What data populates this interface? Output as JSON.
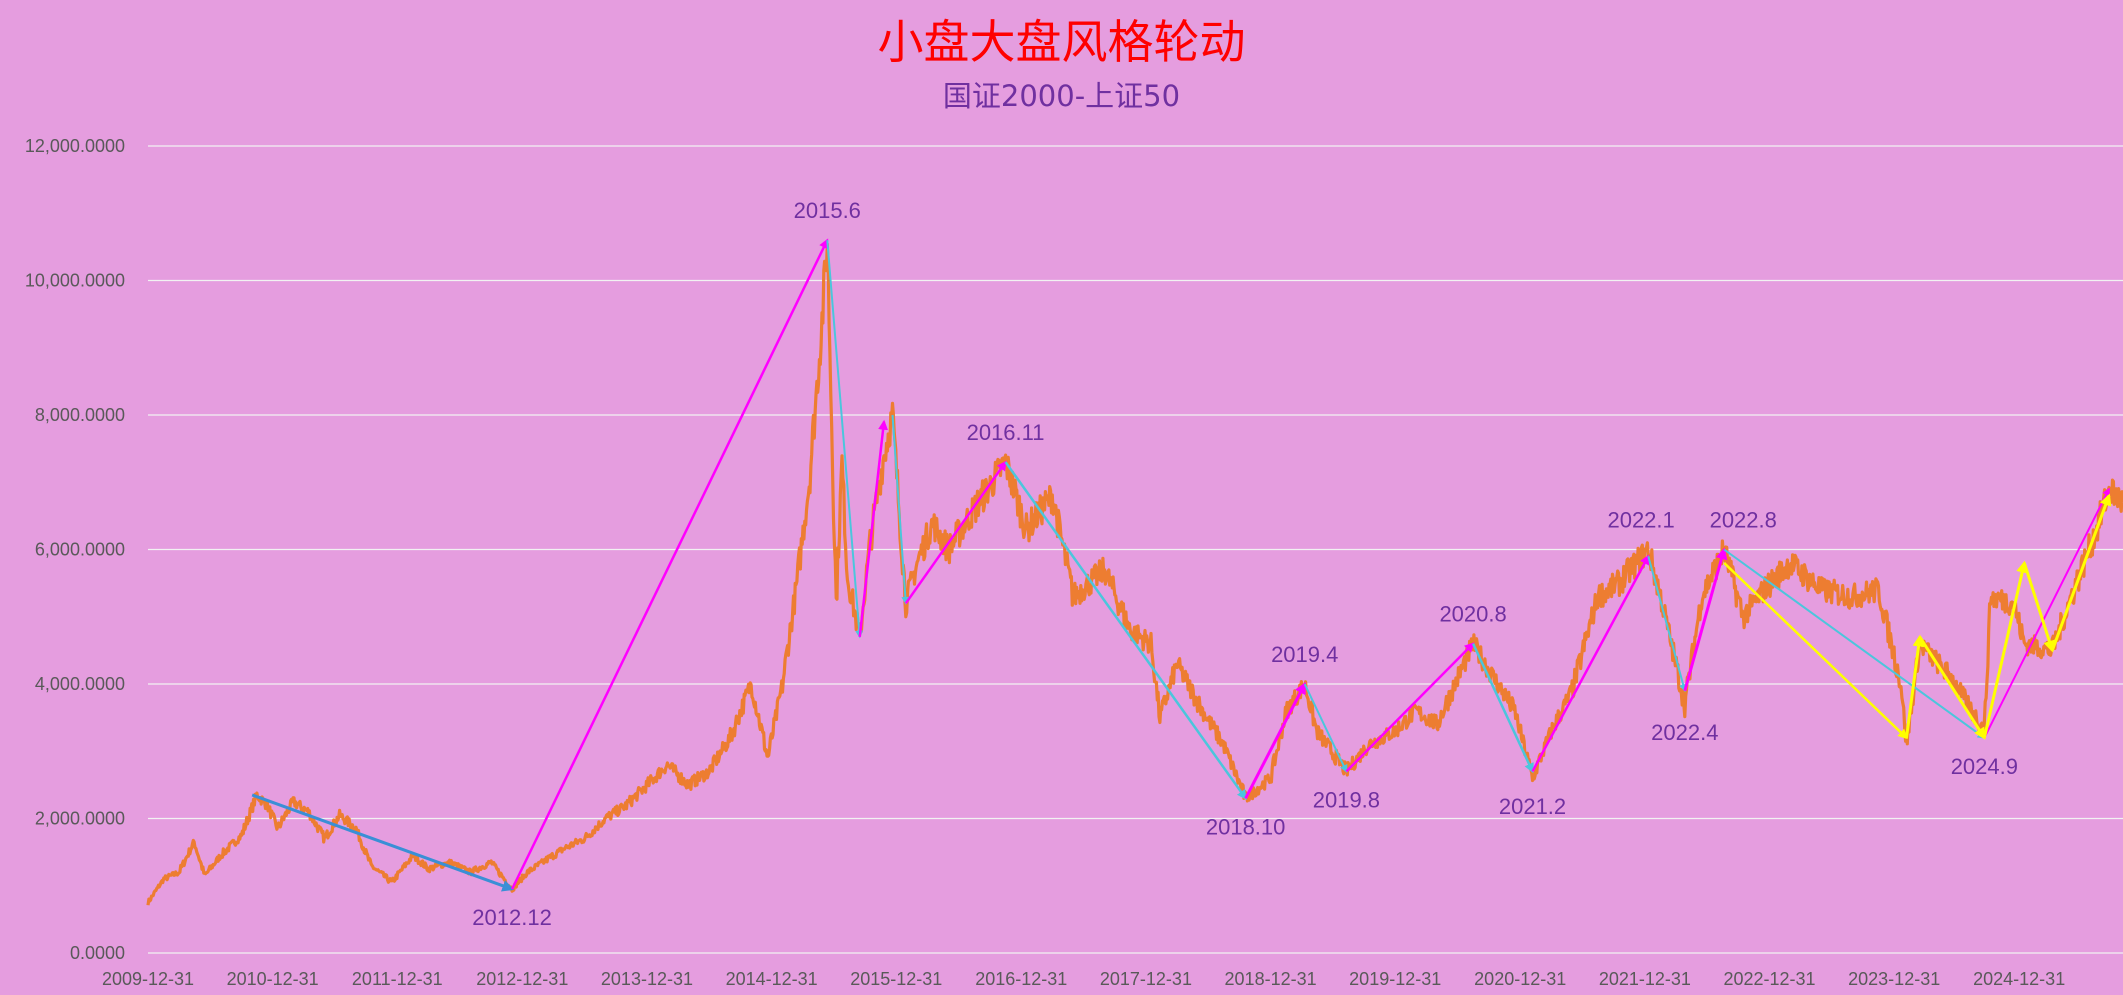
{
  "title": "小盘大盘风格轮动",
  "subtitle": "国证2000-上证50",
  "colors": {
    "background": "#e59ddf",
    "title": "#ff0000",
    "subtitle": "#7030a0",
    "series": "#ed7d31",
    "grid": "#f2f2f2",
    "annotation_text": "#7030a0",
    "arrow_up": "#ff00ff",
    "arrow_down": "#4bc6dc",
    "arrow_blue": "#3a8fd6",
    "arrow_yellow": "#ffff00"
  },
  "chart_data": {
    "type": "line",
    "title": "小盘大盘风格轮动",
    "subtitle": "国证2000-上证50",
    "xlabel": "",
    "ylabel": "",
    "ylim": [
      0,
      12000
    ],
    "grid": true,
    "legend": "none",
    "x_start": "2009-12-31",
    "x_end": "2025-10-31",
    "y_ticks": [
      "0.0000",
      "2,000.0000",
      "4,000.0000",
      "6,000.0000",
      "8,000.0000",
      "10,000.0000",
      "12,000.0000"
    ],
    "y_tick_values": [
      0,
      2000,
      4000,
      6000,
      8000,
      10000,
      12000
    ],
    "x_ticks": [
      "2009-12-31",
      "2010-12-31",
      "2011-12-31",
      "2012-12-31",
      "2013-12-31",
      "2014-12-31",
      "2015-12-31",
      "2016-12-31",
      "2017-12-31",
      "2018-12-31",
      "2019-12-31",
      "2020-12-31",
      "2021-12-31",
      "2022-12-31",
      "2023-12-31",
      "2024-12-31"
    ],
    "series": [
      {
        "color": "#ed7d31",
        "points": [
          [
            "2009-12-31",
            750
          ],
          [
            "2010-02-15",
            1100
          ],
          [
            "2010-04-01",
            1200
          ],
          [
            "2010-05-15",
            1650
          ],
          [
            "2010-06-15",
            1150
          ],
          [
            "2010-08-01",
            1450
          ],
          [
            "2010-10-01",
            1750
          ],
          [
            "2010-11-15",
            2350
          ],
          [
            "2010-12-15",
            2200
          ],
          [
            "2011-01-15",
            1850
          ],
          [
            "2011-03-01",
            2250
          ],
          [
            "2011-04-15",
            2100
          ],
          [
            "2011-06-01",
            1700
          ],
          [
            "2011-07-15",
            2050
          ],
          [
            "2011-09-01",
            1850
          ],
          [
            "2011-10-15",
            1300
          ],
          [
            "2011-12-15",
            1050
          ],
          [
            "2012-02-15",
            1450
          ],
          [
            "2012-04-01",
            1250
          ],
          [
            "2012-06-01",
            1350
          ],
          [
            "2012-08-01",
            1200
          ],
          [
            "2012-10-01",
            1350
          ],
          [
            "2012-12-01",
            950
          ],
          [
            "2013-01-15",
            1200
          ],
          [
            "2013-03-01",
            1350
          ],
          [
            "2013-05-01",
            1550
          ],
          [
            "2013-07-01",
            1700
          ],
          [
            "2013-09-01",
            2000
          ],
          [
            "2013-11-01",
            2200
          ],
          [
            "2014-01-01",
            2500
          ],
          [
            "2014-03-01",
            2800
          ],
          [
            "2014-05-01",
            2500
          ],
          [
            "2014-07-01",
            2700
          ],
          [
            "2014-09-01",
            3200
          ],
          [
            "2014-11-01",
            4000
          ],
          [
            "2014-12-20",
            2900
          ],
          [
            "2015-02-01",
            4000
          ],
          [
            "2015-03-15",
            5500
          ],
          [
            "2015-04-20",
            7000
          ],
          [
            "2015-05-25",
            9200
          ],
          [
            "2015-06-12",
            10600
          ],
          [
            "2015-07-08",
            5200
          ],
          [
            "2015-07-25",
            7300
          ],
          [
            "2015-08-10",
            5600
          ],
          [
            "2015-09-15",
            4700
          ],
          [
            "2015-10-15",
            6100
          ],
          [
            "2015-11-25",
            7400
          ],
          [
            "2015-12-20",
            8000
          ],
          [
            "2016-01-28",
            5200
          ],
          [
            "2016-03-01",
            5800
          ],
          [
            "2016-04-15",
            6400
          ],
          [
            "2016-06-01",
            6000
          ],
          [
            "2016-08-15",
            6600
          ],
          [
            "2016-11-15",
            7300
          ],
          [
            "2017-01-15",
            6300
          ],
          [
            "2017-04-01",
            6800
          ],
          [
            "2017-06-01",
            5300
          ],
          [
            "2017-09-01",
            5700
          ],
          [
            "2017-11-15",
            4800
          ],
          [
            "2018-01-15",
            4600
          ],
          [
            "2018-02-10",
            3500
          ],
          [
            "2018-04-01",
            4300
          ],
          [
            "2018-06-15",
            3600
          ],
          [
            "2018-08-15",
            3100
          ],
          [
            "2018-10-19",
            2300
          ],
          [
            "2018-12-31",
            2600
          ],
          [
            "2019-02-15",
            3600
          ],
          [
            "2019-04-10",
            4000
          ],
          [
            "2019-05-15",
            3300
          ],
          [
            "2019-08-10",
            2700
          ],
          [
            "2019-10-15",
            3100
          ],
          [
            "2019-12-31",
            3300
          ],
          [
            "2020-03-01",
            3600
          ],
          [
            "2020-05-01",
            3400
          ],
          [
            "2020-08-15",
            4600
          ],
          [
            "2020-10-01",
            4200
          ],
          [
            "2020-12-15",
            3600
          ],
          [
            "2021-02-05",
            2600
          ],
          [
            "2021-04-01",
            3300
          ],
          [
            "2021-06-01",
            3900
          ],
          [
            "2021-08-15",
            5300
          ],
          [
            "2021-10-15",
            5500
          ],
          [
            "2022-01-10",
            6000
          ],
          [
            "2022-02-15",
            5300
          ],
          [
            "2022-04-27",
            3700
          ],
          [
            "2022-06-15",
            5300
          ],
          [
            "2022-08-20",
            6000
          ],
          [
            "2022-10-15",
            5000
          ],
          [
            "2022-12-15",
            5400
          ],
          [
            "2023-03-01",
            5800
          ],
          [
            "2023-06-01",
            5400
          ],
          [
            "2023-09-01",
            5300
          ],
          [
            "2023-11-15",
            5400
          ],
          [
            "2024-01-20",
            4000
          ],
          [
            "2024-02-05",
            3100
          ],
          [
            "2024-03-15",
            4600
          ],
          [
            "2024-06-15",
            4100
          ],
          [
            "2024-09-20",
            3300
          ],
          [
            "2024-10-08",
            5300
          ],
          [
            "2024-12-15",
            5200
          ],
          [
            "2025-01-15",
            4600
          ],
          [
            "2025-04-07",
            4500
          ],
          [
            "2025-06-01",
            5300
          ],
          [
            "2025-08-15",
            6300
          ],
          [
            "2025-09-20",
            6900
          ],
          [
            "2025-10-31",
            6700
          ]
        ]
      }
    ],
    "arrows": [
      {
        "from": [
          "2010-11-01",
          2350
        ],
        "to": [
          "2012-12-01",
          950
        ],
        "color": "#3a8fd6",
        "width": 3
      },
      {
        "from": [
          "2012-12-01",
          950
        ],
        "to": [
          "2015-06-12",
          10600
        ],
        "color": "#ff00ff",
        "width": 2.5
      },
      {
        "from": [
          "2015-06-12",
          10600
        ],
        "to": [
          "2015-09-15",
          4700
        ],
        "color": "#4bc6dc",
        "width": 2
      },
      {
        "from": [
          "2015-09-15",
          4700
        ],
        "to": [
          "2015-11-25",
          7900
        ],
        "color": "#ff00ff",
        "width": 2.5
      },
      {
        "from": [
          "2015-12-20",
          8000
        ],
        "to": [
          "2016-01-28",
          5200
        ],
        "color": "#4bc6dc",
        "width": 2
      },
      {
        "from": [
          "2016-01-28",
          5200
        ],
        "to": [
          "2016-11-15",
          7300
        ],
        "color": "#ff00ff",
        "width": 2.5
      },
      {
        "from": [
          "2016-11-15",
          7300
        ],
        "to": [
          "2018-10-19",
          2300
        ],
        "color": "#4bc6dc",
        "width": 2.5
      },
      {
        "from": [
          "2018-10-19",
          2300
        ],
        "to": [
          "2019-04-10",
          4000
        ],
        "color": "#ff00ff",
        "width": 3
      },
      {
        "from": [
          "2019-04-10",
          4000
        ],
        "to": [
          "2019-08-10",
          2700
        ],
        "color": "#4bc6dc",
        "width": 2
      },
      {
        "from": [
          "2019-08-10",
          2700
        ],
        "to": [
          "2020-08-15",
          4600
        ],
        "color": "#ff00ff",
        "width": 2.5
      },
      {
        "from": [
          "2020-08-15",
          4600
        ],
        "to": [
          "2021-02-05",
          2700
        ],
        "color": "#4bc6dc",
        "width": 2.5
      },
      {
        "from": [
          "2021-02-05",
          2700
        ],
        "to": [
          "2022-01-10",
          5900
        ],
        "color": "#ff00ff",
        "width": 2.5
      },
      {
        "from": [
          "2022-01-10",
          5900
        ],
        "to": [
          "2022-04-27",
          3900
        ],
        "color": "#4bc6dc",
        "width": 2
      },
      {
        "from": [
          "2022-04-27",
          3900
        ],
        "to": [
          "2022-08-20",
          6000
        ],
        "color": "#ff00ff",
        "width": 3
      },
      {
        "from": [
          "2022-08-20",
          6000
        ],
        "to": [
          "2024-09-20",
          3200
        ],
        "color": "#4bc6dc",
        "width": 2
      },
      {
        "from": [
          "2022-08-20",
          5800
        ],
        "to": [
          "2024-02-05",
          3200
        ],
        "color": "#ffff00",
        "width": 2.5
      },
      {
        "from": [
          "2024-02-05",
          3200
        ],
        "to": [
          "2024-03-15",
          4700
        ],
        "color": "#ffff00",
        "width": 3
      },
      {
        "from": [
          "2024-03-15",
          4700
        ],
        "to": [
          "2024-09-20",
          3200
        ],
        "color": "#ffff00",
        "width": 3
      },
      {
        "from": [
          "2024-09-20",
          3200
        ],
        "to": [
          "2025-09-20",
          6900
        ],
        "color": "#ff00ff",
        "width": 2
      },
      {
        "from": [
          "2024-09-20",
          3200
        ],
        "to": [
          "2025-01-15",
          5800
        ],
        "color": "#ffff00",
        "width": 3
      },
      {
        "from": [
          "2025-01-15",
          5800
        ],
        "to": [
          "2025-04-07",
          4500
        ],
        "color": "#ffff00",
        "width": 3
      },
      {
        "from": [
          "2025-04-07",
          4500
        ],
        "to": [
          "2025-09-20",
          6800
        ],
        "color": "#ffff00",
        "width": 3
      }
    ],
    "annotations": [
      {
        "text": "2012.12",
        "at": [
          "2012-12-01",
          950
        ],
        "place": "below"
      },
      {
        "text": "2015.6",
        "at": [
          "2015-06-12",
          10600
        ],
        "place": "above"
      },
      {
        "text": "2016.11",
        "at": [
          "2016-11-15",
          7300
        ],
        "place": "above"
      },
      {
        "text": "2018.10",
        "at": [
          "2018-10-19",
          2300
        ],
        "place": "below"
      },
      {
        "text": "2019.4",
        "at": [
          "2019-04-10",
          4000
        ],
        "place": "above"
      },
      {
        "text": "2019.8",
        "at": [
          "2019-08-10",
          2700
        ],
        "place": "below"
      },
      {
        "text": "2020.8",
        "at": [
          "2020-08-15",
          4600
        ],
        "place": "above"
      },
      {
        "text": "2021.2",
        "at": [
          "2021-02-05",
          2600
        ],
        "place": "below"
      },
      {
        "text": "2022.1",
        "at": [
          "2021-12-20",
          6000
        ],
        "place": "above"
      },
      {
        "text": "2022.4",
        "at": [
          "2022-04-27",
          3700
        ],
        "place": "below"
      },
      {
        "text": "2022.8",
        "at": [
          "2022-10-15",
          6000
        ],
        "place": "above"
      },
      {
        "text": "2024.9",
        "at": [
          "2024-09-20",
          3200
        ],
        "place": "below"
      }
    ]
  }
}
